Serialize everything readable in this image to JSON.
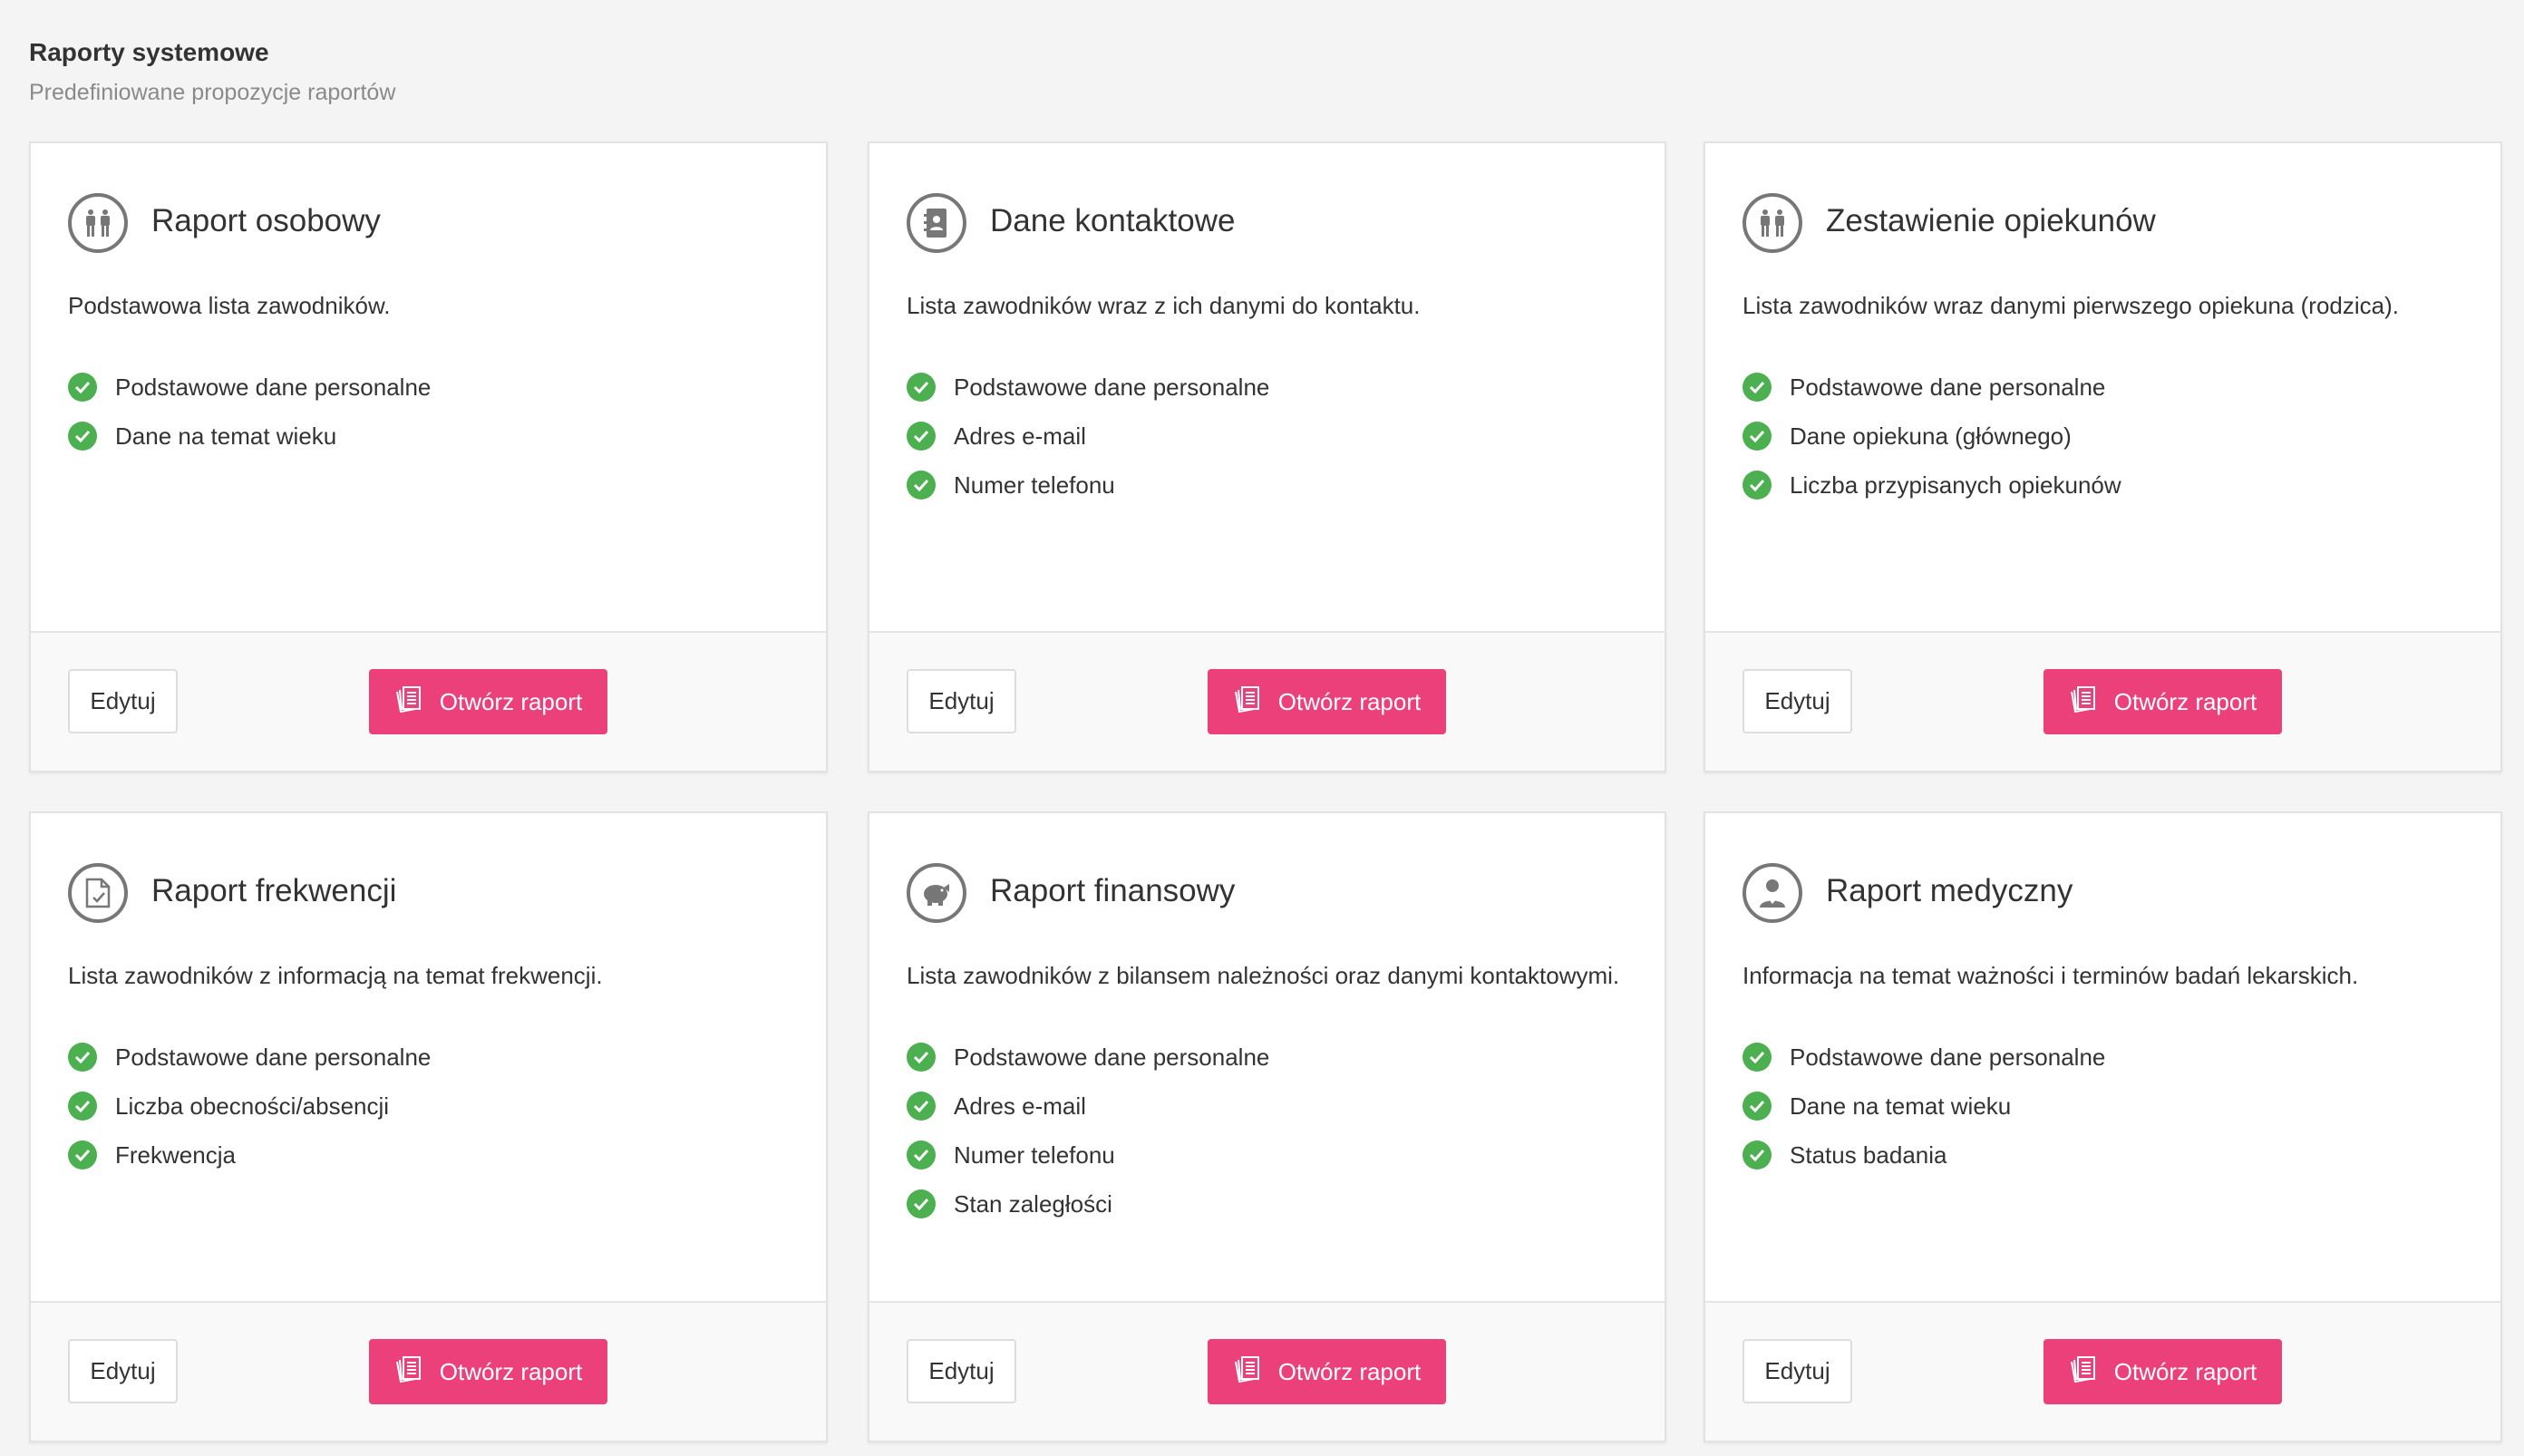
{
  "header": {
    "title": "Raporty systemowe",
    "subtitle": "Predefiniowane propozycje raportów"
  },
  "colors": {
    "accent": "#ec407a",
    "check": "#4caf50"
  },
  "cards": [
    {
      "icon": "people-icon",
      "title": "Raport osobowy",
      "description": "Podstawowa lista zawodników.",
      "features": [
        "Podstawowe dane personalne",
        "Dane na temat wieku"
      ],
      "edit_label": "Edytuj",
      "open_label": "Otwórz raport"
    },
    {
      "icon": "contact-book-icon",
      "title": "Dane kontaktowe",
      "description": "Lista zawodników wraz z ich danymi do kontaktu.",
      "features": [
        "Podstawowe dane personalne",
        "Adres e-mail",
        "Numer telefonu"
      ],
      "edit_label": "Edytuj",
      "open_label": "Otwórz raport"
    },
    {
      "icon": "people-icon",
      "title": "Zestawienie opiekunów",
      "description": "Lista zawodników wraz danymi pierwszego opiekuna (rodzica).",
      "features": [
        "Podstawowe dane personalne",
        "Dane opiekuna (głównego)",
        "Liczba przypisanych opiekunów"
      ],
      "edit_label": "Edytuj",
      "open_label": "Otwórz raport"
    },
    {
      "icon": "document-check-icon",
      "title": "Raport frekwencji",
      "description": "Lista zawodników z informacją na temat frekwencji.",
      "features": [
        "Podstawowe dane personalne",
        "Liczba obecności/absencji",
        "Frekwencja"
      ],
      "edit_label": "Edytuj",
      "open_label": "Otwórz raport"
    },
    {
      "icon": "piggy-bank-icon",
      "title": "Raport finansowy",
      "description": "Lista zawodników z bilansem należności oraz danymi kontaktowymi.",
      "features": [
        "Podstawowe dane personalne",
        "Adres e-mail",
        "Numer telefonu",
        "Stan zaległości"
      ],
      "edit_label": "Edytuj",
      "open_label": "Otwórz raport"
    },
    {
      "icon": "medical-person-icon",
      "title": "Raport medyczny",
      "description": "Informacja na temat ważności i terminów badań lekarskich.",
      "features": [
        "Podstawowe dane personalne",
        "Dane na temat wieku",
        "Status badania"
      ],
      "edit_label": "Edytuj",
      "open_label": "Otwórz raport"
    }
  ]
}
